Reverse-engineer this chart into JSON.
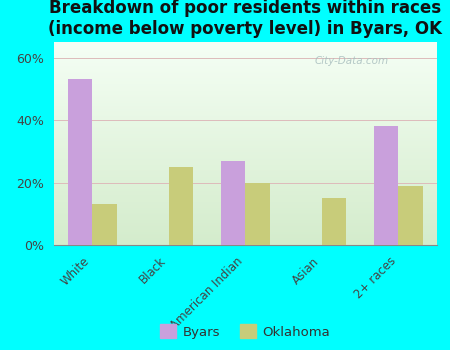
{
  "title": "Breakdown of poor residents within races\n(income below poverty level) in Byars, OK",
  "categories": [
    "White",
    "Black",
    "American Indian",
    "Asian",
    "2+ races"
  ],
  "byars_values": [
    53,
    0,
    27,
    0,
    38
  ],
  "oklahoma_values": [
    13,
    25,
    20,
    15,
    19
  ],
  "byars_color": "#c9a0dc",
  "oklahoma_color": "#c8cc7a",
  "background_color": "#00ffff",
  "ylim": [
    0,
    65
  ],
  "yticks": [
    0,
    20,
    40,
    60
  ],
  "ytick_labels": [
    "0%",
    "20%",
    "40%",
    "60%"
  ],
  "bar_width": 0.32,
  "title_fontsize": 12,
  "legend_labels": [
    "Byars",
    "Oklahoma"
  ],
  "watermark": "City-Data.com"
}
